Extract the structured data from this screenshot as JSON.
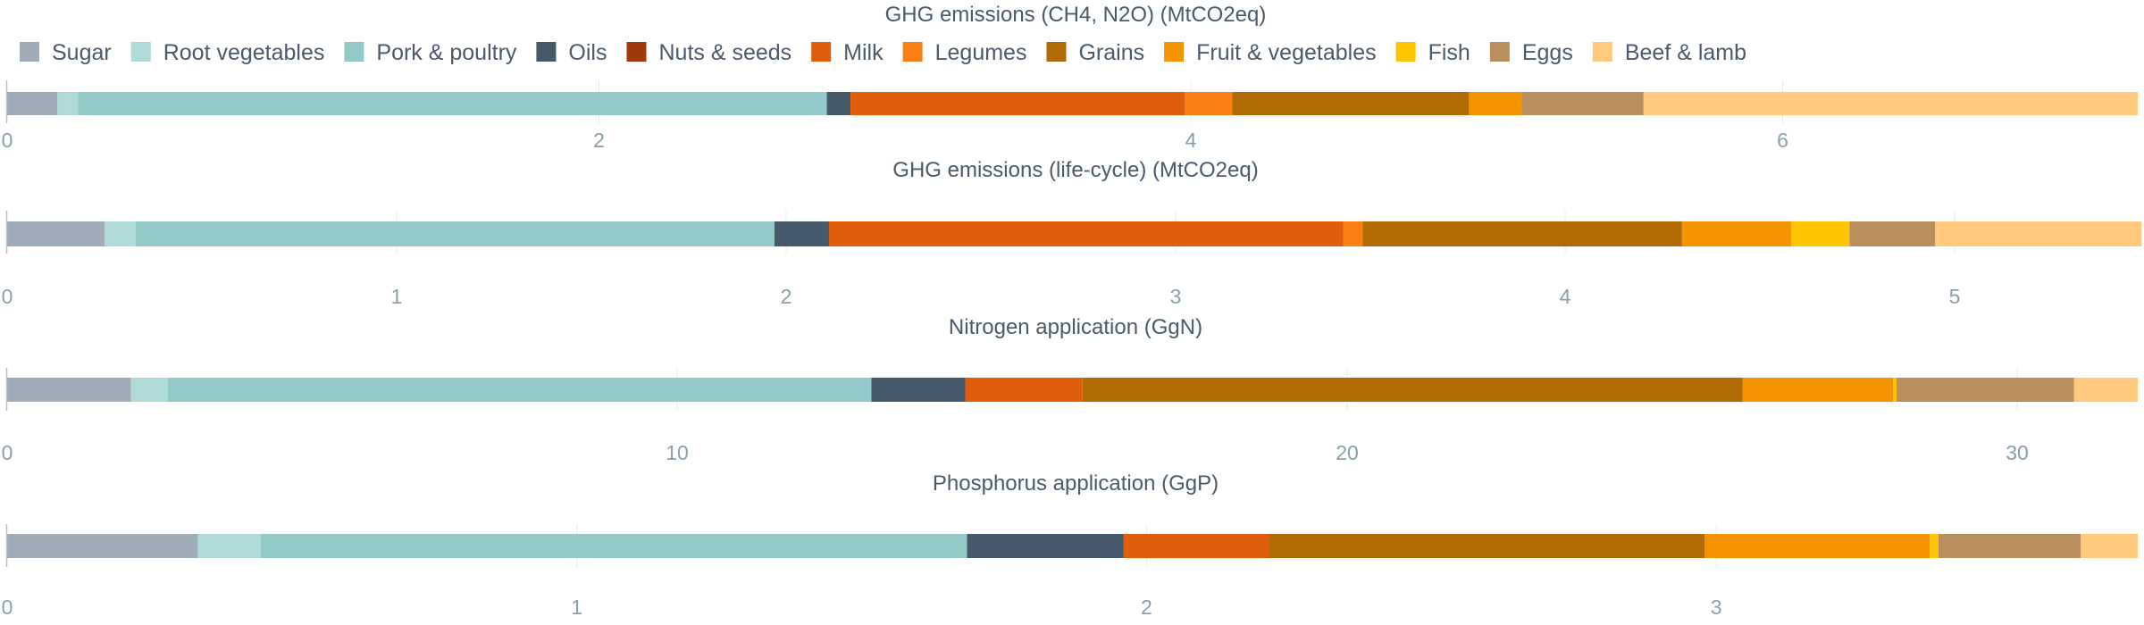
{
  "chart_data": {
    "type": "bar",
    "orientation": "horizontal-stacked",
    "legend_position": "top-left",
    "categories": [
      "Sugar",
      "Root vegetables",
      "Pork & poultry",
      "Oils",
      "Nuts & seeds",
      "Milk",
      "Legumes",
      "Grains",
      "Fruit & vegetables",
      "Fish",
      "Eggs",
      "Beef & lamb"
    ],
    "colors": {
      "Sugar": "#a0adb8",
      "Root vegetables": "#b0dad8",
      "Pork & poultry": "#93cac8",
      "Oils": "#46596a",
      "Nuts & seeds": "#a1390b",
      "Milk": "#e05d0e",
      "Legumes": "#fc7f16",
      "Grains": "#b06b04",
      "Fruit & vegetables": "#f59300",
      "Fish": "#fec500",
      "Eggs": "#b88f5d",
      "Beef & lamb": "#ffc97e"
    },
    "panels": [
      {
        "title": "GHG emissions (CH4, N2O) (MtCO2eq)",
        "xlim": [
          0,
          7.2
        ],
        "ticks": [
          0,
          2,
          4,
          6
        ],
        "values": [
          0.17,
          0.07,
          2.53,
          0.08,
          0.0,
          1.13,
          0.16,
          0.8,
          0.18,
          0.0,
          0.41,
          1.67
        ]
      },
      {
        "title": "GHG emissions (life-cycle) (MtCO2eq)",
        "xlim": [
          0,
          5.47
        ],
        "ticks": [
          0,
          1,
          2,
          3,
          4,
          5
        ],
        "values": [
          0.25,
          0.08,
          1.64,
          0.14,
          0.0,
          1.32,
          0.05,
          0.82,
          0.28,
          0.15,
          0.22,
          0.53
        ]
      },
      {
        "title": "Nitrogen application (GgN)",
        "xlim": [
          0,
          31.8
        ],
        "ticks": [
          0,
          10,
          20,
          30
        ],
        "values": [
          1.85,
          0.55,
          10.5,
          1.4,
          0.0,
          1.75,
          0.0,
          9.85,
          2.25,
          0.05,
          2.65,
          0.95
        ]
      },
      {
        "title": "Phosphorus application (GgP)",
        "xlim": [
          0,
          3.74
        ],
        "ticks": [
          0,
          1,
          2,
          3
        ],
        "values": [
          0.335,
          0.11,
          1.24,
          0.275,
          0.0,
          0.255,
          0.0,
          0.765,
          0.395,
          0.015,
          0.25,
          0.1
        ]
      }
    ]
  }
}
